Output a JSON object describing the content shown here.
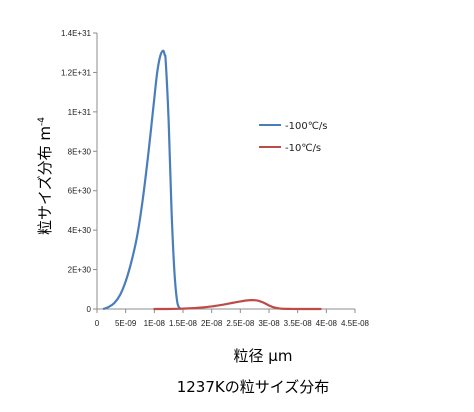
{
  "chart_data": {
    "type": "line",
    "caption": "1237Kの粒サイズ分布",
    "xlabel": "粒径 μm",
    "ylabel": "粒サイズ分布 m",
    "ylabel_superscript": "-4",
    "xlim": [
      0,
      4.5e-08
    ],
    "ylim": [
      0,
      1.4e+31
    ],
    "grid": false,
    "legend_position": "right",
    "x_ticks": [
      {
        "value": 0,
        "label": "0"
      },
      {
        "value": 5e-09,
        "label": "5E-09"
      },
      {
        "value": 1e-08,
        "label": "1E-08"
      },
      {
        "value": 1.5e-08,
        "label": "1.5E-08"
      },
      {
        "value": 2e-08,
        "label": "2E-08"
      },
      {
        "value": 2.5e-08,
        "label": "2.5E-08"
      },
      {
        "value": 3e-08,
        "label": "3E-08"
      },
      {
        "value": 3.5e-08,
        "label": "3.5E-08"
      },
      {
        "value": 4e-08,
        "label": "4E-08"
      },
      {
        "value": 4.5e-08,
        "label": "4.5E-08"
      }
    ],
    "y_ticks": [
      {
        "value": 0,
        "label": "0"
      },
      {
        "value": 2e+30,
        "label": "2E+30"
      },
      {
        "value": 4e+30,
        "label": "4E+30"
      },
      {
        "value": 6e+30,
        "label": "6E+30"
      },
      {
        "value": 8e+30,
        "label": "8E+30"
      },
      {
        "value": 1e+31,
        "label": "1E+31"
      },
      {
        "value": 1.2e+31,
        "label": "1.2E+31"
      },
      {
        "value": 1.4e+31,
        "label": "1.4E+31"
      }
    ],
    "series": [
      {
        "name": "-100℃/s",
        "color": "#4a7ebb",
        "x": [
          1.2e-09,
          2e-09,
          3e-09,
          4e-09,
          5e-09,
          6e-09,
          7e-09,
          8e-09,
          9e-09,
          1e-08,
          1.05e-08,
          1.1e-08,
          1.15e-08,
          1.18e-08,
          1.2e-08,
          1.25e-08,
          1.3e-08,
          1.35e-08,
          1.4e-08,
          1.45e-08
        ],
        "values": [
          1e+28,
          1e+29,
          3e+29,
          7e+29,
          1.4e+30,
          2.4e+30,
          3.7e+30,
          5.6e+30,
          8e+30,
          1.07e+31,
          1.2e+31,
          1.28e+31,
          1.31e+31,
          1.29e+31,
          1.25e+31,
          9.5e+30,
          5e+30,
          1.9e+30,
          3.5e+29,
          2e+28
        ]
      },
      {
        "name": "-10℃/s",
        "color": "#be4b48",
        "x": [
          1e-08,
          1.2e-08,
          1.4e-08,
          1.6e-08,
          1.8e-08,
          2e-08,
          2.2e-08,
          2.4e-08,
          2.6e-08,
          2.7e-08,
          2.8e-08,
          2.9e-08,
          3e-08,
          3.1e-08,
          3.2e-08,
          3.4e-08,
          3.6e-08,
          3.9e-08
        ],
        "values": [
          0,
          0,
          1e+28,
          3e+28,
          7e+28,
          1.3e+29,
          2.2e+29,
          3.3e+29,
          4.3e+29,
          4.5e+29,
          4.3e+29,
          3.3e+29,
          1.8e+29,
          7e+28,
          2e+28,
          4e+27,
          1e+27,
          0
        ]
      }
    ]
  }
}
